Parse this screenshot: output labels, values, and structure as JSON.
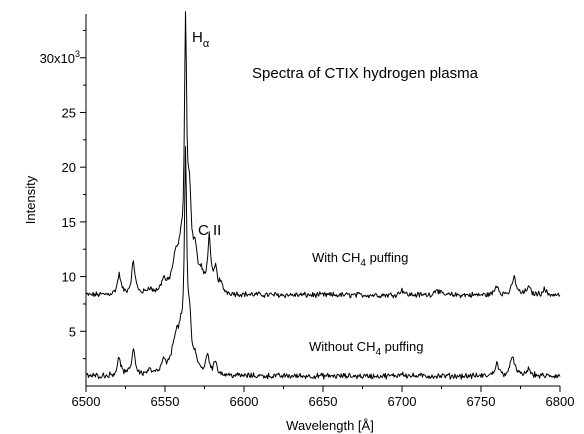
{
  "chart_data": {
    "type": "line",
    "title": "Spectra of CTIX hydrogen plasma",
    "xlabel": "Wavelength [Å]",
    "ylabel": "Intensity",
    "xlim": [
      6500,
      6800
    ],
    "ylim": [
      0,
      34000
    ],
    "x_ticks": [
      6500,
      6550,
      6600,
      6650,
      6700,
      6750,
      6800
    ],
    "x_tick_labels": [
      "6500",
      "6550",
      "6600",
      "6650",
      "6700",
      "6750",
      "6800"
    ],
    "y_ticks": [
      5000,
      10000,
      15000,
      20000,
      25000,
      30000
    ],
    "y_tick_labels": [
      "5",
      "10",
      "15",
      "20",
      "25",
      "30x10"
    ],
    "y_tick_exponent": "3",
    "grid": false,
    "annotations": {
      "h_alpha_main": "H",
      "h_alpha_sub": "α",
      "c_ii": "C II",
      "with_label_prefix": "With CH",
      "with_label_sub": "4",
      "with_label_suffix": " puffing",
      "without_label_prefix": "Without CH",
      "without_label_sub": "4",
      "without_label_suffix": " puffing"
    },
    "series": [
      {
        "key": "with-ch4",
        "baseline": 8300,
        "peaks": [
          {
            "x": 6521,
            "h": 1800,
            "w": 1.3
          },
          {
            "x": 6530,
            "h": 2900,
            "w": 1.3
          },
          {
            "x": 6540,
            "h": 500,
            "w": 1.5
          },
          {
            "x": 6549,
            "h": 1100,
            "w": 1.5
          },
          {
            "x": 6557,
            "h": 3200,
            "w": 3.0
          },
          {
            "x": 6560,
            "h": 2200,
            "w": 1.2
          },
          {
            "x": 6563,
            "h": 23000,
            "w": 0.9
          },
          {
            "x": 6565.5,
            "h": 7500,
            "w": 1.3
          },
          {
            "x": 6569,
            "h": 3300,
            "w": 1.8
          },
          {
            "x": 6573,
            "h": 1300,
            "w": 1.6
          },
          {
            "x": 6578,
            "h": 5000,
            "w": 1.2
          },
          {
            "x": 6582,
            "h": 2000,
            "w": 1.1
          },
          {
            "x": 6585,
            "h": 800,
            "w": 1.5
          },
          {
            "x": 6700,
            "h": 500,
            "w": 1.5
          },
          {
            "x": 6722,
            "h": 600,
            "w": 1.5
          },
          {
            "x": 6760,
            "h": 900,
            "w": 1.3
          },
          {
            "x": 6771,
            "h": 1600,
            "w": 1.5
          },
          {
            "x": 6780,
            "h": 700,
            "w": 1.5
          },
          {
            "x": 6790,
            "h": 500,
            "w": 1.5
          }
        ]
      },
      {
        "key": "without-ch4",
        "baseline": 900,
        "peaks": [
          {
            "x": 6521,
            "h": 1600,
            "w": 1.3
          },
          {
            "x": 6530,
            "h": 2400,
            "w": 1.3
          },
          {
            "x": 6540,
            "h": 400,
            "w": 1.5
          },
          {
            "x": 6549,
            "h": 1000,
            "w": 1.5
          },
          {
            "x": 6557,
            "h": 3500,
            "w": 3.0
          },
          {
            "x": 6560,
            "h": 2000,
            "w": 1.2
          },
          {
            "x": 6563,
            "h": 19000,
            "w": 0.9
          },
          {
            "x": 6565.5,
            "h": 4000,
            "w": 1.3
          },
          {
            "x": 6569,
            "h": 1200,
            "w": 1.8
          },
          {
            "x": 6577,
            "h": 1800,
            "w": 1.3
          },
          {
            "x": 6582,
            "h": 1200,
            "w": 1.2
          },
          {
            "x": 6700,
            "h": 300,
            "w": 1.5
          },
          {
            "x": 6760,
            "h": 1200,
            "w": 1.3
          },
          {
            "x": 6770,
            "h": 1900,
            "w": 1.5
          },
          {
            "x": 6780,
            "h": 600,
            "w": 1.5
          }
        ]
      }
    ]
  }
}
